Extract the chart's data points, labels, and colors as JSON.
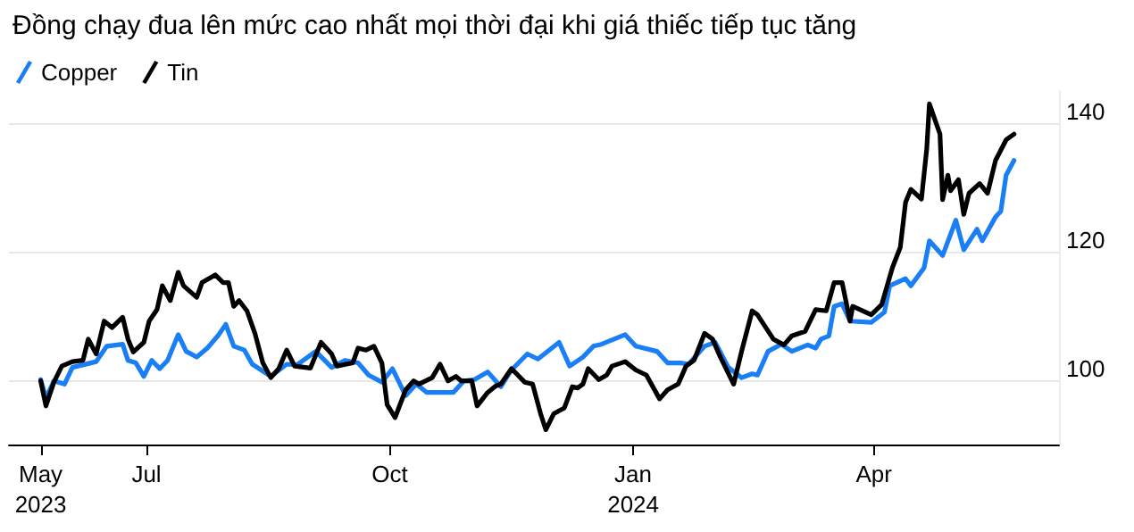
{
  "chart_data": {
    "type": "line",
    "title": "Đồng chạy đua lên mức cao nhất mọi thời đại khi giá thiếc tiếp tục tăng",
    "legend": "top left",
    "grid": "y",
    "marker": "none",
    "line_style": "solid",
    "xlim": [
      "2023-05-10",
      "2024-06-10"
    ],
    "xticks": [
      {
        "value": "2023-05-22",
        "label": "May 2023"
      },
      {
        "value": "2023-07-01",
        "label": "Jul"
      },
      {
        "value": "2023-10-01",
        "label": "Oct"
      },
      {
        "value": "2024-01-01",
        "label": "Jan 2024"
      },
      {
        "value": "2024-04-01",
        "label": "Apr"
      }
    ],
    "ylim": [
      90,
      145
    ],
    "yticks": [
      100,
      120,
      140
    ],
    "series": [
      {
        "name": "Copper",
        "color": "#1a7ff5",
        "x": [
          "2023-05-22",
          "2023-05-24",
          "2023-05-27",
          "2023-05-31",
          "2023-06-03",
          "2023-06-12",
          "2023-06-16",
          "2023-06-22",
          "2023-06-24",
          "2023-06-27",
          "2023-06-30",
          "2023-07-03",
          "2023-07-06",
          "2023-07-09",
          "2023-07-13",
          "2023-07-16",
          "2023-07-20",
          "2023-07-24",
          "2023-07-28",
          "2023-07-31",
          "2023-08-03",
          "2023-08-07",
          "2023-08-10",
          "2023-08-17",
          "2023-08-23",
          "2023-08-27",
          "2023-09-03",
          "2023-09-09",
          "2023-09-14",
          "2023-09-19",
          "2023-09-23",
          "2023-09-28",
          "2023-10-02",
          "2023-10-07",
          "2023-10-11",
          "2023-10-15",
          "2023-10-25",
          "2023-10-29",
          "2023-11-02",
          "2023-11-07",
          "2023-11-12",
          "2023-11-16",
          "2023-11-22",
          "2023-11-26",
          "2023-12-04",
          "2023-12-08",
          "2023-12-13",
          "2023-12-17",
          "2023-12-20",
          "2023-12-29",
          "2024-01-02",
          "2024-01-10",
          "2024-01-14",
          "2024-01-19",
          "2024-01-22",
          "2024-01-28",
          "2024-02-01",
          "2024-02-06",
          "2024-02-11",
          "2024-02-15",
          "2024-02-17",
          "2024-02-21",
          "2024-02-26",
          "2024-03-01",
          "2024-03-07",
          "2024-03-10",
          "2024-03-12",
          "2024-03-15",
          "2024-03-17",
          "2024-03-20",
          "2024-03-23",
          "2024-03-31",
          "2024-04-05",
          "2024-04-07",
          "2024-04-13",
          "2024-04-15",
          "2024-04-20",
          "2024-04-22",
          "2024-04-27",
          "2024-05-02",
          "2024-05-05",
          "2024-05-10",
          "2024-05-12",
          "2024-05-17",
          "2024-05-19",
          "2024-05-21",
          "2024-05-24"
        ],
        "values": [
          100.1,
          97.2,
          99.9,
          99.4,
          102,
          102.9,
          105.3,
          105.6,
          103.1,
          102.7,
          100.6,
          103.1,
          101.8,
          103.1,
          107.1,
          104.5,
          103.6,
          105,
          106.9,
          108.7,
          105.3,
          104.7,
          102.5,
          100.6,
          102.5,
          102.4,
          104.5,
          102,
          103.1,
          102.7,
          100.8,
          99.7,
          101.8,
          97.6,
          99.4,
          98.1,
          98.1,
          99.9,
          100.1,
          101.3,
          99,
          101.6,
          104.1,
          103.3,
          105.9,
          102.2,
          103.6,
          105.3,
          105.6,
          107.1,
          105.3,
          104.5,
          102.7,
          102.7,
          102.5,
          105.3,
          105.9,
          102,
          100.4,
          101,
          100.8,
          104.5,
          105.6,
          104.5,
          105.5,
          105,
          106.4,
          106.9,
          111.5,
          111.9,
          109.2,
          109,
          110.6,
          114.7,
          115.8,
          114.7,
          117.5,
          121.7,
          119.4,
          124.9,
          120.3,
          123.5,
          121.7,
          125.4,
          126.3,
          131.9,
          134.2
        ]
      },
      {
        "name": "Tin",
        "color": "#000000",
        "x": [
          "2023-05-22",
          "2023-05-24",
          "2023-05-27",
          "2023-05-30",
          "2023-06-03",
          "2023-06-07",
          "2023-06-09",
          "2023-06-12",
          "2023-06-15",
          "2023-06-18",
          "2023-06-22",
          "2023-06-24",
          "2023-06-26",
          "2023-06-30",
          "2023-07-02",
          "2023-07-05",
          "2023-07-07",
          "2023-07-10",
          "2023-07-13",
          "2023-07-15",
          "2023-07-20",
          "2023-07-22",
          "2023-07-27",
          "2023-07-30",
          "2023-08-01",
          "2023-08-03",
          "2023-08-05",
          "2023-08-08",
          "2023-08-11",
          "2023-08-14",
          "2023-08-17",
          "2023-08-20",
          "2023-08-23",
          "2023-08-26",
          "2023-09-01",
          "2023-09-05",
          "2023-09-09",
          "2023-09-11",
          "2023-09-17",
          "2023-09-19",
          "2023-09-22",
          "2023-09-25",
          "2023-09-28",
          "2023-09-30",
          "2023-10-03",
          "2023-10-07",
          "2023-10-10",
          "2023-10-12",
          "2023-10-17",
          "2023-10-20",
          "2023-10-23",
          "2023-10-26",
          "2023-10-28",
          "2023-11-01",
          "2023-11-03",
          "2023-11-07",
          "2023-11-10",
          "2023-11-12",
          "2023-11-16",
          "2023-11-21",
          "2023-11-24",
          "2023-11-27",
          "2023-11-29",
          "2023-12-02",
          "2023-12-06",
          "2023-12-09",
          "2023-12-11",
          "2023-12-13",
          "2023-12-15",
          "2023-12-19",
          "2023-12-22",
          "2023-12-24",
          "2023-12-29",
          "2024-01-02",
          "2024-01-06",
          "2024-01-11",
          "2024-01-14",
          "2024-01-18",
          "2024-01-21",
          "2024-01-24",
          "2024-01-28",
          "2024-01-31",
          "2024-02-03",
          "2024-02-08",
          "2024-02-11",
          "2024-02-15",
          "2024-02-17",
          "2024-02-23",
          "2024-02-27",
          "2024-03-01",
          "2024-03-06",
          "2024-03-10",
          "2024-03-14",
          "2024-03-17",
          "2024-03-20",
          "2024-03-23",
          "2024-03-24",
          "2024-03-31",
          "2024-04-04",
          "2024-04-08",
          "2024-04-11",
          "2024-04-13",
          "2024-04-15",
          "2024-04-19",
          "2024-04-21",
          "2024-04-22",
          "2024-04-26",
          "2024-04-27",
          "2024-04-29",
          "2024-04-30",
          "2024-05-03",
          "2024-05-05",
          "2024-05-07",
          "2024-05-11",
          "2024-05-14",
          "2024-05-17",
          "2024-05-21",
          "2024-05-24"
        ],
        "values": [
          99.9,
          96,
          99.7,
          102.2,
          102.9,
          103.1,
          106.4,
          104.1,
          109.2,
          108.2,
          109.8,
          106.4,
          104.4,
          105.9,
          109.2,
          111,
          114.7,
          112.4,
          116.8,
          114.7,
          112.9,
          115.2,
          116.4,
          115.2,
          115.2,
          111.5,
          112.4,
          110.8,
          107.3,
          102.7,
          100.4,
          101.8,
          104.7,
          102.2,
          101.9,
          105.9,
          104.1,
          102.2,
          102.7,
          105,
          104.7,
          105.3,
          102.7,
          96.2,
          94.2,
          98.5,
          99.9,
          99.4,
          100.4,
          102.5,
          99.9,
          100.6,
          99.9,
          99.9,
          96,
          98.1,
          99.1,
          99.4,
          101.8,
          99.7,
          99.4,
          94.8,
          92.3,
          94.8,
          95.7,
          99,
          98.8,
          99.4,
          101.8,
          100.1,
          100.8,
          102.2,
          102.9,
          101.6,
          100.8,
          97.1,
          98.5,
          99.4,
          102.2,
          103.1,
          107.3,
          106.4,
          103.6,
          99.4,
          104.5,
          110.8,
          110.2,
          106.4,
          105.5,
          106.9,
          107.6,
          111,
          110.8,
          115.2,
          115.2,
          109.2,
          111.5,
          110.2,
          111.8,
          117.5,
          120.7,
          127.7,
          129.7,
          128.2,
          136,
          143,
          138.3,
          128.1,
          131.9,
          129.5,
          131.2,
          125.8,
          129.1,
          130.6,
          129.1,
          134.2,
          137.4,
          138.3
        ]
      }
    ]
  }
}
